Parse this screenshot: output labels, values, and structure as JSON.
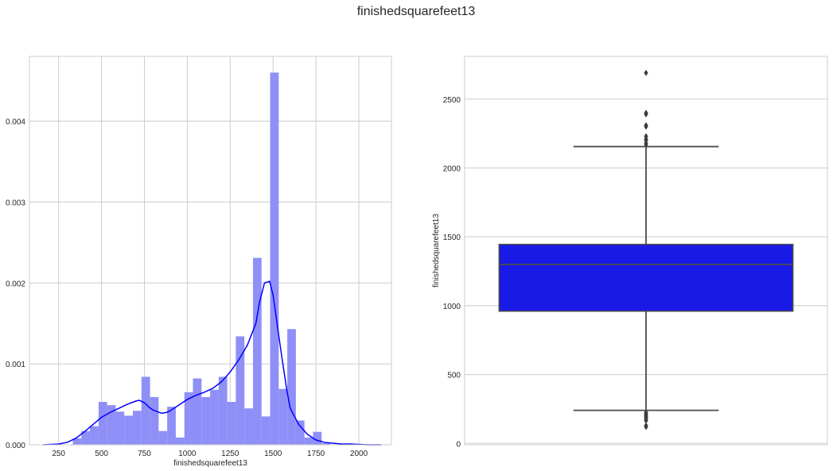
{
  "figure": {
    "title": "finishedsquarefeet13"
  },
  "chart_data": [
    {
      "type": "histogram",
      "xlabel": "finishedsquarefeet13",
      "ylabel": "",
      "xlim": [
        80,
        2190
      ],
      "ylim": [
        0,
        0.0048
      ],
      "grid": true,
      "xticks": [
        250,
        500,
        750,
        1000,
        1250,
        1500,
        1750,
        2000
      ],
      "xtick_labels": [
        "250",
        "500",
        "750",
        "1000",
        "1250",
        "1500",
        "1750",
        "2000"
      ],
      "yticks": [
        0,
        0.001,
        0.002,
        0.003,
        0.004
      ],
      "ytick_labels": [
        "0.000",
        "0.001",
        "0.002",
        "0.003",
        "0.004"
      ],
      "bar_color": "#8f8ff8",
      "kde_color": "#0000ff",
      "bins": [
        {
          "x0": 333,
          "x1": 383,
          "y": 8e-05
        },
        {
          "x0": 383,
          "x1": 433,
          "y": 0.00017
        },
        {
          "x0": 433,
          "x1": 483,
          "y": 0.00023
        },
        {
          "x0": 483,
          "x1": 533,
          "y": 0.00053
        },
        {
          "x0": 533,
          "x1": 583,
          "y": 0.00049
        },
        {
          "x0": 583,
          "x1": 633,
          "y": 0.00041
        },
        {
          "x0": 633,
          "x1": 683,
          "y": 0.00036
        },
        {
          "x0": 683,
          "x1": 733,
          "y": 0.00042
        },
        {
          "x0": 733,
          "x1": 783,
          "y": 0.00084
        },
        {
          "x0": 783,
          "x1": 833,
          "y": 0.00059
        },
        {
          "x0": 833,
          "x1": 883,
          "y": 0.00017
        },
        {
          "x0": 883,
          "x1": 933,
          "y": 0.00047
        },
        {
          "x0": 933,
          "x1": 983,
          "y": 9e-05
        },
        {
          "x0": 983,
          "x1": 1033,
          "y": 0.00065
        },
        {
          "x0": 1033,
          "x1": 1083,
          "y": 0.00082
        },
        {
          "x0": 1083,
          "x1": 1133,
          "y": 0.00059
        },
        {
          "x0": 1133,
          "x1": 1183,
          "y": 0.00068
        },
        {
          "x0": 1183,
          "x1": 1233,
          "y": 0.00084
        },
        {
          "x0": 1233,
          "x1": 1283,
          "y": 0.00053
        },
        {
          "x0": 1283,
          "x1": 1333,
          "y": 0.00134
        },
        {
          "x0": 1333,
          "x1": 1383,
          "y": 0.00045
        },
        {
          "x0": 1383,
          "x1": 1433,
          "y": 0.00231
        },
        {
          "x0": 1433,
          "x1": 1483,
          "y": 0.00035
        },
        {
          "x0": 1483,
          "x1": 1533,
          "y": 0.0046
        },
        {
          "x0": 1533,
          "x1": 1583,
          "y": 0.00069
        },
        {
          "x0": 1583,
          "x1": 1633,
          "y": 0.00143
        },
        {
          "x0": 1633,
          "x1": 1683,
          "y": 0.0003
        },
        {
          "x0": 1683,
          "x1": 1733,
          "y": 9e-05
        },
        {
          "x0": 1733,
          "x1": 1783,
          "y": 0.00016
        },
        {
          "x0": 1783,
          "x1": 1833,
          "y": 2e-05
        }
      ],
      "kde": {
        "x": [
          160,
          250,
          300,
          350,
          400,
          450,
          500,
          550,
          600,
          650,
          700,
          720,
          750,
          780,
          800,
          850,
          880,
          900,
          950,
          1000,
          1050,
          1100,
          1150,
          1200,
          1250,
          1300,
          1350,
          1400,
          1420,
          1450,
          1480,
          1500,
          1520,
          1550,
          1580,
          1600,
          1650,
          1700,
          1750,
          1800,
          1850,
          1900,
          1950,
          2000,
          2050,
          2100,
          2130
        ],
        "y": [
          0.0,
          1e-05,
          3e-05,
          8e-05,
          0.00016,
          0.00025,
          0.00034,
          0.0004,
          0.00045,
          0.0005,
          0.00054,
          0.00055,
          0.00052,
          0.00046,
          0.00043,
          0.00039,
          0.0004,
          0.00042,
          0.00049,
          0.00056,
          0.00061,
          0.00065,
          0.0007,
          0.00078,
          0.0009,
          0.00105,
          0.00123,
          0.0015,
          0.00175,
          0.002,
          0.00202,
          0.00185,
          0.00155,
          0.0011,
          0.00068,
          0.00045,
          0.00025,
          0.00013,
          6e-05,
          3e-05,
          2e-05,
          1e-05,
          1e-05,
          5e-06,
          0.0,
          0.0,
          0.0
        ]
      }
    },
    {
      "type": "box",
      "xlabel": "",
      "ylabel": "finishedsquarefeet13",
      "ylim": [
        -10,
        2810
      ],
      "grid": true,
      "yticks": [
        0,
        500,
        1000,
        1500,
        2000,
        2500
      ],
      "ytick_labels": [
        "0",
        "500",
        "1000",
        "1500",
        "2000",
        "2500"
      ],
      "box_color": "#1a1ae6",
      "line_color": "#4d4d4d",
      "q1": 960,
      "median": 1300,
      "q3": 1445,
      "whisker_low": 240,
      "whisker_high": 2155,
      "outliers_high": [
        2170,
        2180,
        2200,
        2210,
        2230,
        2300,
        2310,
        2390,
        2400,
        2690
      ],
      "outliers_low": [
        120,
        130,
        165,
        175,
        185,
        195,
        200,
        210,
        215,
        225
      ]
    }
  ]
}
